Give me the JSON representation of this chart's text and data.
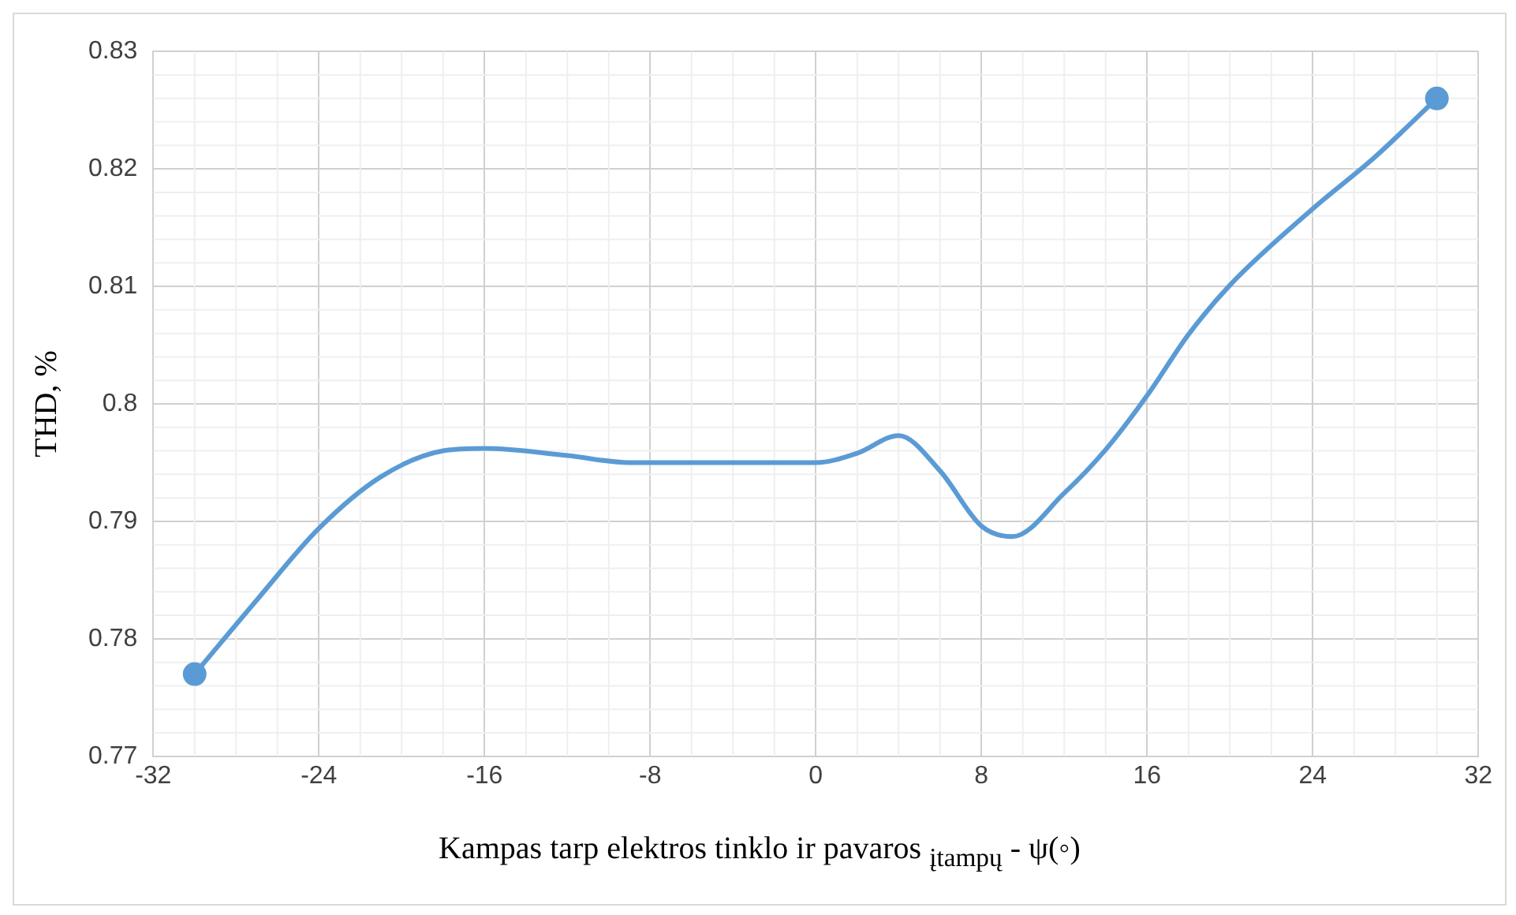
{
  "chart_data": {
    "type": "line",
    "xlabel": "Kampas tarp elektros tinklo ir pavaros $_{įtampų}$ - ψ(◦)",
    "ylabel": "THD, %",
    "xlim": [
      -32,
      32
    ],
    "xticks": [
      -32,
      -24,
      -16,
      -8,
      0,
      8,
      16,
      24,
      32
    ],
    "ylim": [
      0.77,
      0.83
    ],
    "yticks": [
      0.77,
      0.78,
      0.79,
      {
        "value": 0.8,
        "label": "0.8"
      },
      0.81,
      0.82,
      0.83
    ],
    "grid": true,
    "legend": false,
    "series": [
      {
        "color": "#5b9bd5",
        "marker": "none",
        "x": [
          -30,
          -27,
          -24,
          -21,
          -18,
          -16,
          -12,
          -9,
          -6,
          -3,
          0,
          2,
          4,
          6,
          8,
          9.5,
          12,
          14,
          16,
          18,
          20,
          24,
          27,
          30
        ],
        "values": [
          0.777,
          0.7833,
          0.7894,
          0.7938,
          0.796,
          0.7962,
          0.7956,
          0.795,
          0.795,
          0.795,
          0.795,
          0.7958,
          0.7973,
          0.7943,
          0.7896,
          0.7887,
          0.7924,
          0.7961,
          0.8007,
          0.8059,
          0.8101,
          0.8166,
          0.821,
          0.826
        ]
      },
      {
        "type": "scatter",
        "color": "#5b9bd5",
        "marker": "circle",
        "x": [
          -30,
          30
        ],
        "values": [
          0.777,
          0.826
        ]
      }
    ]
  }
}
